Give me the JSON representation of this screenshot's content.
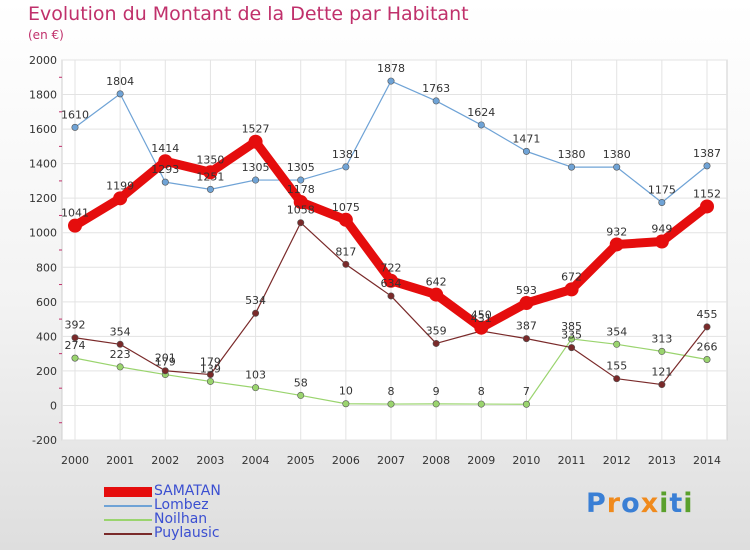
{
  "title": "Evolution du Montant de la Dette par Habitant",
  "unit": "(en €)",
  "logo": {
    "letters": [
      "P",
      "r",
      "o",
      "x",
      "i",
      "t",
      "i"
    ],
    "colors": [
      "#3a7fd5",
      "#f08a1c",
      "#3a7fd5",
      "#f08a1c",
      "#5aa02c",
      "#3a7fd5",
      "#5aa02c"
    ]
  },
  "chart_data": {
    "type": "line",
    "x": [
      "2000",
      "2001",
      "2002",
      "2003",
      "2004",
      "2005",
      "2006",
      "2007",
      "2008",
      "2009",
      "2010",
      "2011",
      "2012",
      "2013",
      "2014"
    ],
    "ylim": [
      -200,
      2000
    ],
    "yticks": [
      "-200",
      "0",
      "200",
      "400",
      "600",
      "800",
      "1000",
      "1200",
      "1400",
      "1600",
      "1800",
      "2000"
    ],
    "grid": true,
    "legend_position": "bottom-left",
    "series": [
      {
        "name": "SAMATAN",
        "color": "#e50d0d",
        "values": [
          1041,
          1199,
          1414,
          1350,
          1527,
          1178,
          1075,
          722,
          642,
          450,
          593,
          672,
          932,
          949,
          1152
        ]
      },
      {
        "name": "Lombez",
        "color": "#6fa3d6",
        "values": [
          1610,
          1804,
          1293,
          1251,
          1305,
          1305,
          1381,
          1878,
          1763,
          1624,
          1471,
          1380,
          1380,
          1175,
          1387
        ]
      },
      {
        "name": "Noilhan",
        "color": "#9ad46e",
        "values": [
          274,
          223,
          179,
          139,
          103,
          58,
          10,
          8,
          9,
          8,
          7,
          385,
          354,
          313,
          266
        ]
      },
      {
        "name": "Puylausic",
        "color": "#7a2a2a",
        "values": [
          392,
          354,
          201,
          179,
          534,
          1058,
          817,
          634,
          359,
          431,
          387,
          335,
          155,
          121,
          455
        ]
      }
    ]
  }
}
